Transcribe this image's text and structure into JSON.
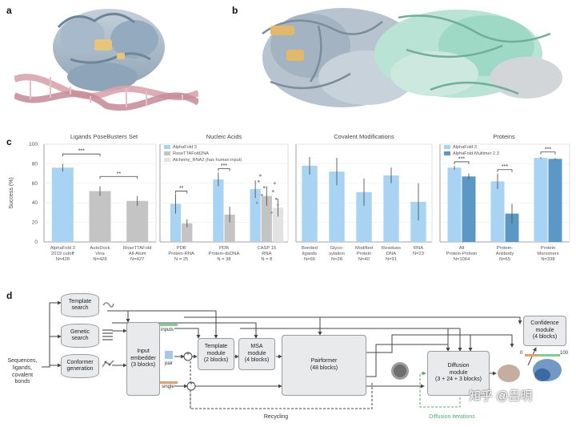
{
  "panels": {
    "a": "a",
    "b": "b",
    "c": "c",
    "d": "d"
  },
  "colors": {
    "light_blue": "#a8d3f2",
    "gray": "#c4c4c4",
    "dark_blue": "#5c98c6",
    "light_gray": "#e2e2e2",
    "dna_pink": "#d9a3ad",
    "protein_gray": "#9fb3c3",
    "green": "#7fcf8f",
    "orange": "#e8a06a",
    "teal": "#9ed9c5"
  },
  "chart_data": [
    {
      "type": "bar",
      "title": "Ligands PoseBusters Set",
      "ylabel": "Success (%)",
      "ylim": [
        0,
        100
      ],
      "yticks": [
        "0",
        "20",
        "40",
        "60",
        "80",
        "100"
      ],
      "categories": [
        {
          "lines": [
            "AlphaFold 3",
            "2019 cutoff",
            "N=428"
          ]
        },
        {
          "lines": [
            "AutoDock",
            "Vina",
            "N=428"
          ]
        },
        {
          "lines": [
            "RoseTTAFold",
            "All-Atom",
            "N=427"
          ]
        }
      ],
      "values": [
        76,
        52,
        42
      ],
      "colors": [
        "light_blue",
        "gray",
        "gray"
      ],
      "errors": [
        4,
        5,
        5
      ],
      "significance": [
        {
          "from": 0,
          "to": 1,
          "label": "***",
          "y": 90
        },
        {
          "from": 1,
          "to": 2,
          "label": "**",
          "y": 67
        }
      ]
    },
    {
      "type": "bar",
      "title": "Nucleic Acids",
      "ylim": [
        0,
        100
      ],
      "legend": [
        {
          "name": "AlphaFold 3",
          "color": "light_blue"
        },
        {
          "name": "RoseTTAFold2NA",
          "color": "gray"
        },
        {
          "name": "Alchemy_RNA2 (has human input)",
          "color": "light_gray"
        }
      ],
      "categories": [
        {
          "lines": [
            "PDB",
            "Protein-RNA",
            "N = 25"
          ]
        },
        {
          "lines": [
            "PDB",
            "Protein-dsDNA",
            "N = 38"
          ]
        },
        {
          "lines": [
            "CASP 15",
            "RNA",
            "N = 8"
          ]
        }
      ],
      "series": [
        {
          "name": "AlphaFold 3",
          "values": [
            39,
            64,
            54
          ],
          "errors": [
            10,
            7,
            9
          ],
          "color": "light_blue"
        },
        {
          "name": "RoseTTAFold2NA",
          "values": [
            19,
            28,
            47
          ],
          "errors": [
            4,
            8,
            10
          ],
          "color": "gray"
        },
        {
          "name": "Alchemy_RNA2 (has human input)",
          "values": [
            null,
            null,
            35
          ],
          "errors": [
            null,
            null,
            9
          ],
          "color": "light_gray"
        }
      ],
      "significance": [
        {
          "group": 0,
          "label": "**",
          "y": 52
        },
        {
          "group": 1,
          "label": "***",
          "y": 75
        }
      ]
    },
    {
      "type": "bar",
      "title": "Covalent Modifications",
      "ylim": [
        0,
        100
      ],
      "categories": [
        {
          "lines": [
            "Bonded",
            "ligands",
            "N=66"
          ]
        },
        {
          "lines": [
            "Glyco-",
            "sylation",
            "N=28"
          ]
        },
        {
          "lines": [
            "Modified",
            "Protein",
            "N=40"
          ]
        },
        {
          "lines": [
            "Residues",
            "DNA",
            "N=91"
          ]
        },
        {
          "lines": [
            "RNA",
            "N=23"
          ]
        }
      ],
      "values": [
        78,
        72,
        51,
        68,
        41
      ],
      "errors": [
        9,
        14,
        14,
        8,
        19
      ],
      "colors": [
        "light_blue",
        "light_blue",
        "light_blue",
        "light_blue",
        "light_blue"
      ]
    },
    {
      "type": "bar",
      "title": "Proteins",
      "ylim": [
        0,
        100
      ],
      "legend": [
        {
          "name": "AlphaFold 3",
          "color": "light_blue"
        },
        {
          "name": "AlphaFold-Multimer 2.3",
          "color": "dark_blue"
        }
      ],
      "categories": [
        {
          "lines": [
            "All",
            "Protein-Protein",
            "N=1064"
          ]
        },
        {
          "lines": [
            "Protein-",
            "Antibody",
            "N=65"
          ]
        },
        {
          "lines": [
            "Protein",
            "Monomers",
            "N=338"
          ]
        }
      ],
      "series": [
        {
          "name": "AlphaFold 3",
          "values": [
            76,
            62,
            86
          ],
          "errors": [
            2,
            8,
            1
          ],
          "color": "light_blue"
        },
        {
          "name": "AlphaFold-Multimer 2.3",
          "values": [
            67,
            29,
            85
          ],
          "errors": [
            3,
            10,
            1
          ],
          "color": "dark_blue"
        }
      ],
      "significance": [
        {
          "group": 0,
          "label": "***",
          "y": 82
        },
        {
          "group": 1,
          "label": "***",
          "y": 74
        },
        {
          "group": 2,
          "label": "***",
          "y": 92
        }
      ]
    }
  ],
  "diagram": {
    "inputs_label": [
      "Sequences,",
      "ligands,",
      "covalent",
      "bonds"
    ],
    "template_search": [
      "Template",
      "search"
    ],
    "genetic_search": [
      "Genetic",
      "search"
    ],
    "conformer_generation": [
      "Conformer",
      "generation"
    ],
    "input_embedder": [
      "Input",
      "embedder",
      "(3 blocks)"
    ],
    "tag_inputs": "inputs",
    "tag_pair": "pair",
    "tag_single": "single",
    "template_module": [
      "Template",
      "module",
      "(2 blocks)"
    ],
    "msa_module": [
      "MSA",
      "module",
      "(4 blocks)"
    ],
    "pairformer": [
      "Pairformer",
      "(48 blocks)"
    ],
    "diffusion_module": [
      "Diffusion",
      "module",
      "(3 + 24 + 3 blocks)"
    ],
    "confidence_module": [
      "Confidence",
      "module",
      "(4 blocks)"
    ],
    "recycling": "Recycling",
    "diffusion_iterations": "Diffusion iterations",
    "plus": "+",
    "zero": "0",
    "hundred": "100"
  },
  "watermark": "知乎 @吕明"
}
